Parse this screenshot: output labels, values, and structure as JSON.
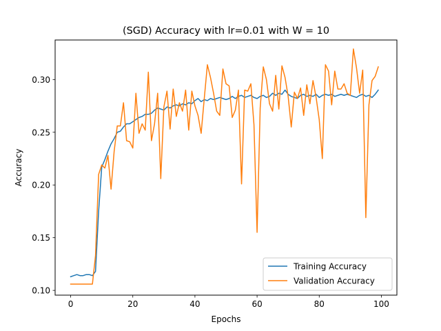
{
  "chart_data": {
    "type": "line",
    "title": "(SGD) Accuracy with lr=0.01 with W = 10",
    "xlabel": "Epochs",
    "ylabel": "Accuracy",
    "xlim": [
      -5,
      105
    ],
    "ylim": [
      0.0955,
      0.3375
    ],
    "xticks": [
      0,
      20,
      40,
      60,
      80,
      100
    ],
    "xtick_labels": [
      "0",
      "20",
      "40",
      "60",
      "80",
      "100"
    ],
    "yticks": [
      0.1,
      0.15,
      0.2,
      0.25,
      0.3
    ],
    "ytick_labels": [
      "0.10",
      "0.15",
      "0.20",
      "0.25",
      "0.30"
    ],
    "grid": false,
    "legend_position": "lower right",
    "x": [
      0,
      1,
      2,
      3,
      4,
      5,
      6,
      7,
      8,
      9,
      10,
      11,
      12,
      13,
      14,
      15,
      16,
      17,
      18,
      19,
      20,
      21,
      22,
      23,
      24,
      25,
      26,
      27,
      28,
      29,
      30,
      31,
      32,
      33,
      34,
      35,
      36,
      37,
      38,
      39,
      40,
      41,
      42,
      43,
      44,
      45,
      46,
      47,
      48,
      49,
      50,
      51,
      52,
      53,
      54,
      55,
      56,
      57,
      58,
      59,
      60,
      61,
      62,
      63,
      64,
      65,
      66,
      67,
      68,
      69,
      70,
      71,
      72,
      73,
      74,
      75,
      76,
      77,
      78,
      79,
      80,
      81,
      82,
      83,
      84,
      85,
      86,
      87,
      88,
      89,
      90,
      91,
      92,
      93,
      94,
      95,
      96,
      97,
      98,
      99
    ],
    "series": [
      {
        "name": "Training Accuracy",
        "color": "#1f77b4",
        "values": [
          0.113,
          0.114,
          0.115,
          0.114,
          0.114,
          0.115,
          0.115,
          0.114,
          0.118,
          0.175,
          0.217,
          0.224,
          0.232,
          0.239,
          0.244,
          0.25,
          0.251,
          0.255,
          0.258,
          0.258,
          0.26,
          0.262,
          0.264,
          0.265,
          0.267,
          0.267,
          0.268,
          0.271,
          0.273,
          0.272,
          0.271,
          0.274,
          0.273,
          0.275,
          0.276,
          0.275,
          0.277,
          0.276,
          0.278,
          0.277,
          0.28,
          0.282,
          0.279,
          0.281,
          0.28,
          0.282,
          0.281,
          0.282,
          0.283,
          0.282,
          0.281,
          0.282,
          0.284,
          0.282,
          0.284,
          0.285,
          0.283,
          0.284,
          0.285,
          0.283,
          0.282,
          0.284,
          0.285,
          0.283,
          0.284,
          0.287,
          0.285,
          0.287,
          0.286,
          0.29,
          0.286,
          0.284,
          0.283,
          0.282,
          0.285,
          0.286,
          0.284,
          0.285,
          0.284,
          0.286,
          0.283,
          0.285,
          0.286,
          0.285,
          0.286,
          0.284,
          0.285,
          0.286,
          0.285,
          0.286,
          0.285,
          0.284,
          0.283,
          0.285,
          0.286,
          0.284,
          0.285,
          0.283,
          0.286,
          0.29
        ]
      },
      {
        "name": "Validation Accuracy",
        "color": "#ff7f0e",
        "values": [
          0.106,
          0.106,
          0.106,
          0.106,
          0.106,
          0.106,
          0.106,
          0.106,
          0.133,
          0.21,
          0.219,
          0.216,
          0.228,
          0.196,
          0.232,
          0.256,
          0.256,
          0.278,
          0.242,
          0.241,
          0.235,
          0.287,
          0.249,
          0.258,
          0.252,
          0.307,
          0.242,
          0.258,
          0.287,
          0.206,
          0.274,
          0.289,
          0.253,
          0.291,
          0.265,
          0.278,
          0.27,
          0.29,
          0.252,
          0.289,
          0.275,
          0.266,
          0.249,
          0.282,
          0.314,
          0.302,
          0.287,
          0.27,
          0.266,
          0.31,
          0.296,
          0.294,
          0.264,
          0.271,
          0.29,
          0.201,
          0.29,
          0.289,
          0.296,
          0.257,
          0.155,
          0.273,
          0.312,
          0.3,
          0.277,
          0.27,
          0.304,
          0.272,
          0.313,
          0.302,
          0.284,
          0.255,
          0.288,
          0.282,
          0.292,
          0.266,
          0.295,
          0.277,
          0.299,
          0.283,
          0.262,
          0.225,
          0.314,
          0.308,
          0.276,
          0.308,
          0.291,
          0.291,
          0.296,
          0.287,
          0.285,
          0.329,
          0.311,
          0.287,
          0.309,
          0.169,
          0.276,
          0.299,
          0.303,
          0.312
        ]
      }
    ]
  }
}
